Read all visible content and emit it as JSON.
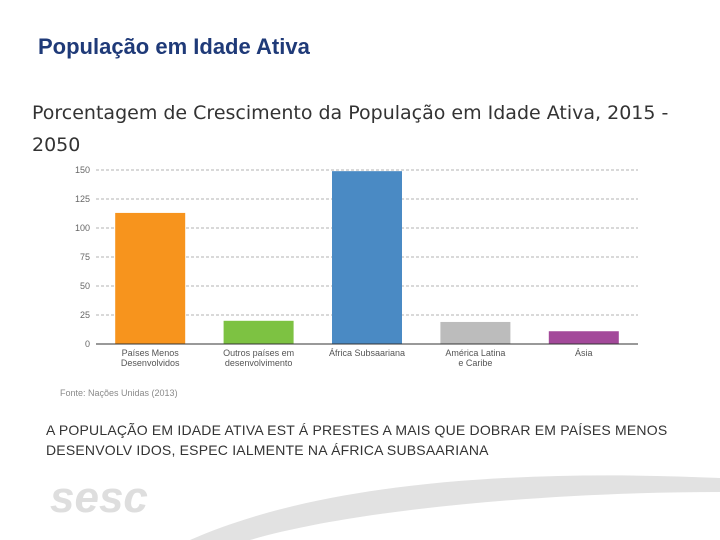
{
  "slide_title": "População em Idade Ativa",
  "chart_data": {
    "type": "bar",
    "title": "Porcentagem de Crescimento da População em Idade Ativa, 2015 - 2050",
    "categories": [
      [
        "Países Menos",
        "Desenvolvidos"
      ],
      [
        "Outros países em",
        "desenvolvimento"
      ],
      [
        "África Subsaariana"
      ],
      [
        "América Latina",
        "e Caribe"
      ],
      [
        "Ásia"
      ]
    ],
    "values": [
      113,
      20,
      149,
      19,
      11
    ],
    "colors": [
      "#f7941d",
      "#7dc242",
      "#4a8ac4",
      "#bcbcbc",
      "#a3499a"
    ],
    "ylim": [
      0,
      150
    ],
    "yticks": [
      0,
      25,
      50,
      75,
      100,
      125,
      150
    ],
    "grid": true,
    "xlabel": "",
    "ylabel": ""
  },
  "source": "Fonte: Nações Unidas (2013)",
  "caption": "A POPULAÇÃO EM IDADE ATIVA EST Á PRESTES A MAIS QUE DOBRAR EM PAÍSES MENOS DESENVOLV IDOS, ESPEC IALMENTE NA ÁFRICA SUBSAARIANA",
  "logo_text": "sesc"
}
